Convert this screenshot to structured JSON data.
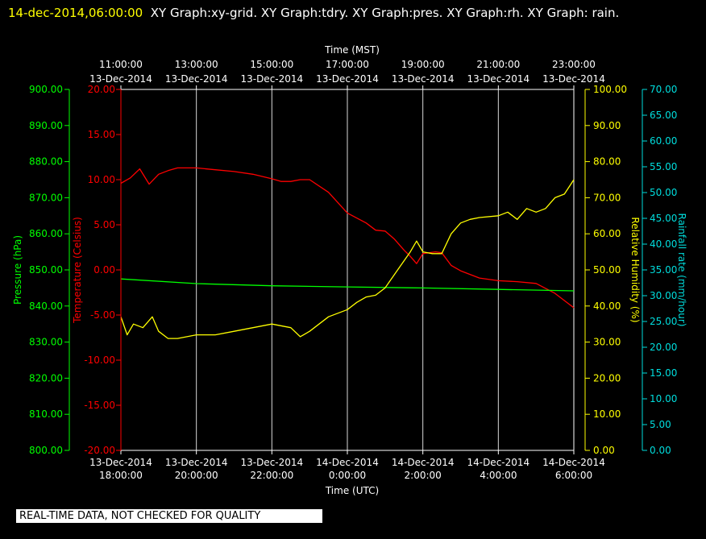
{
  "header": {
    "timestamp": "14-dec-2014,06:00:00",
    "title": "XY Graph:xy-grid.  XY Graph:tdry.  XY Graph:pres.  XY Graph:rh.  XY Graph: rain."
  },
  "disclaimer": "REAL-TIME DATA, NOT CHECKED FOR QUALITY",
  "colors": {
    "temperature": "#ff0000",
    "pressure": "#00ff00",
    "humidity": "#ffff00",
    "rainfall": "#00dddd",
    "grid": "#ffffff",
    "background": "#000000"
  },
  "chart_data": {
    "type": "line",
    "grid": true,
    "top_axis": {
      "title": "Time (MST)",
      "ticks": [
        [
          "11:00:00",
          "13-Dec-2014"
        ],
        [
          "13:00:00",
          "13-Dec-2014"
        ],
        [
          "15:00:00",
          "13-Dec-2014"
        ],
        [
          "17:00:00",
          "13-Dec-2014"
        ],
        [
          "19:00:00",
          "13-Dec-2014"
        ],
        [
          "21:00:00",
          "13-Dec-2014"
        ],
        [
          "23:00:00",
          "13-Dec-2014"
        ]
      ]
    },
    "bottom_axis": {
      "title": "Time (UTC)",
      "ticks": [
        [
          "13-Dec-2014",
          "18:00:00"
        ],
        [
          "13-Dec-2014",
          "20:00:00"
        ],
        [
          "13-Dec-2014",
          "22:00:00"
        ],
        [
          "14-Dec-2014",
          "0:00:00"
        ],
        [
          "14-Dec-2014",
          "2:00:00"
        ],
        [
          "14-Dec-2014",
          "4:00:00"
        ],
        [
          "14-Dec-2014",
          "6:00:00"
        ]
      ],
      "range_utc": [
        "13-Dec-2014 18:00:00",
        "14-Dec-2014 06:00:00"
      ]
    },
    "axes": {
      "pressure": {
        "label": "Pressure (hPa)",
        "min": 800,
        "max": 900,
        "ticks": [
          "800.00",
          "810.00",
          "820.00",
          "830.00",
          "840.00",
          "850.00",
          "860.00",
          "870.00",
          "880.00",
          "890.00",
          "900.00"
        ]
      },
      "temperature": {
        "label": "Temperature (Celsius)",
        "min": -20,
        "max": 20,
        "ticks": [
          "-20.00",
          "-15.00",
          "-10.00",
          "-5.00",
          "0.00",
          "5.00",
          "10.00",
          "15.00",
          "20.00"
        ]
      },
      "humidity": {
        "label": "Relative Humidity (%)",
        "min": 0,
        "max": 100,
        "ticks": [
          "0.00",
          "10.00",
          "20.00",
          "30.00",
          "40.00",
          "50.00",
          "60.00",
          "70.00",
          "80.00",
          "90.00",
          "100.00"
        ]
      },
      "rainfall": {
        "label": "Rainfall rate (mm/hour)",
        "min": 0,
        "max": 70,
        "ticks": [
          "0.00",
          "5.00",
          "10.00",
          "15.00",
          "20.00",
          "25.00",
          "30.00",
          "35.00",
          "40.00",
          "45.00",
          "50.00",
          "55.00",
          "60.00",
          "65.00",
          "70.00"
        ]
      }
    },
    "series": [
      {
        "axis": "temperature",
        "x": [
          "13-Dec-2014 18:00",
          "13-Dec-2014 18:15",
          "13-Dec-2014 18:30",
          "13-Dec-2014 18:45",
          "13-Dec-2014 19:00",
          "13-Dec-2014 19:15",
          "13-Dec-2014 19:30",
          "13-Dec-2014 20:00",
          "13-Dec-2014 20:30",
          "13-Dec-2014 21:00",
          "13-Dec-2014 21:30",
          "13-Dec-2014 22:00",
          "13-Dec-2014 22:15",
          "13-Dec-2014 22:30",
          "13-Dec-2014 22:45",
          "13-Dec-2014 23:00",
          "13-Dec-2014 23:30",
          "14-Dec-2014 00:00",
          "14-Dec-2014 00:30",
          "14-Dec-2014 00:45",
          "14-Dec-2014 01:00",
          "14-Dec-2014 01:15",
          "14-Dec-2014 01:30",
          "14-Dec-2014 01:40",
          "14-Dec-2014 01:50",
          "14-Dec-2014 02:00",
          "14-Dec-2014 02:20",
          "14-Dec-2014 02:30",
          "14-Dec-2014 02:45",
          "14-Dec-2014 03:00",
          "14-Dec-2014 03:30",
          "14-Dec-2014 04:00",
          "14-Dec-2014 04:30",
          "14-Dec-2014 05:00",
          "14-Dec-2014 05:30",
          "14-Dec-2014 06:00"
        ],
        "values": [
          9.6,
          10.2,
          11.2,
          9.5,
          10.6,
          11.0,
          11.3,
          11.3,
          11.1,
          10.9,
          10.6,
          10.1,
          9.8,
          9.8,
          10.0,
          10.0,
          8.6,
          6.3,
          5.2,
          4.4,
          4.3,
          3.4,
          2.2,
          1.5,
          0.7,
          1.8,
          2.0,
          1.9,
          0.5,
          -0.1,
          -0.9,
          -1.2,
          -1.3,
          -1.5,
          -2.6,
          -4.2
        ]
      },
      {
        "axis": "pressure",
        "x": [
          "13-Dec-2014 18:00",
          "13-Dec-2014 20:00",
          "13-Dec-2014 22:00",
          "14-Dec-2014 00:00",
          "14-Dec-2014 02:00",
          "14-Dec-2014 04:00",
          "14-Dec-2014 06:00"
        ],
        "values": [
          847.5,
          846.2,
          845.6,
          845.3,
          845.0,
          844.6,
          844.2
        ]
      },
      {
        "axis": "humidity",
        "x": [
          "13-Dec-2014 18:00",
          "13-Dec-2014 18:10",
          "13-Dec-2014 18:20",
          "13-Dec-2014 18:35",
          "13-Dec-2014 18:50",
          "13-Dec-2014 19:00",
          "13-Dec-2014 19:15",
          "13-Dec-2014 19:30",
          "13-Dec-2014 20:00",
          "13-Dec-2014 20:30",
          "13-Dec-2014 21:00",
          "13-Dec-2014 21:30",
          "13-Dec-2014 22:00",
          "13-Dec-2014 22:30",
          "13-Dec-2014 22:45",
          "13-Dec-2014 23:00",
          "13-Dec-2014 23:30",
          "14-Dec-2014 00:00",
          "14-Dec-2014 00:15",
          "14-Dec-2014 00:30",
          "14-Dec-2014 00:45",
          "14-Dec-2014 01:00",
          "14-Dec-2014 01:20",
          "14-Dec-2014 01:40",
          "14-Dec-2014 01:50",
          "14-Dec-2014 02:00",
          "14-Dec-2014 02:15",
          "14-Dec-2014 02:30",
          "14-Dec-2014 02:45",
          "14-Dec-2014 03:00",
          "14-Dec-2014 03:15",
          "14-Dec-2014 03:30",
          "14-Dec-2014 04:00",
          "14-Dec-2014 04:15",
          "14-Dec-2014 04:30",
          "14-Dec-2014 04:45",
          "14-Dec-2014 05:00",
          "14-Dec-2014 05:15",
          "14-Dec-2014 05:30",
          "14-Dec-2014 05:45",
          "14-Dec-2014 06:00"
        ],
        "values": [
          37,
          32,
          35,
          34,
          37,
          33,
          31,
          31,
          32,
          32,
          33,
          34,
          35,
          34,
          31.5,
          33,
          37,
          39,
          41,
          42.5,
          43,
          45,
          50,
          55,
          58,
          55,
          54.5,
          54.5,
          60,
          63,
          64,
          64.5,
          65,
          66,
          64,
          67,
          66,
          67,
          70,
          71,
          75
        ]
      }
    ]
  }
}
